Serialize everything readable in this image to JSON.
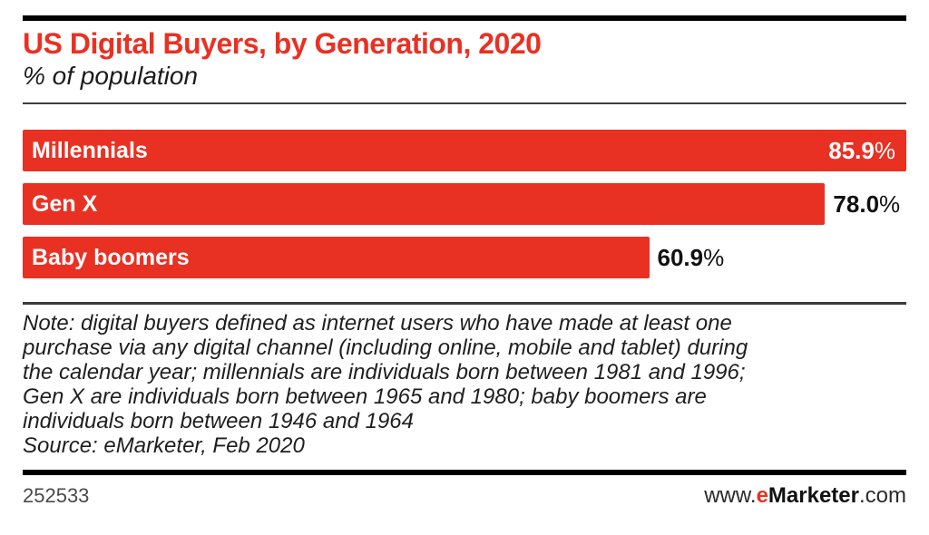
{
  "header": {
    "title": "US Digital Buyers, by Generation, 2020",
    "subtitle": "% of population"
  },
  "chart_data": {
    "type": "bar",
    "orientation": "horizontal",
    "title": "US Digital Buyers, by Generation, 2020",
    "unit_label": "% of population",
    "categories": [
      "Millennials",
      "Gen X",
      "Baby boomers"
    ],
    "values": [
      85.9,
      78.0,
      60.9
    ],
    "display_values": [
      "85.9",
      "78.0",
      "60.9"
    ],
    "value_suffix": "%",
    "xlim": [
      0,
      85.9
    ],
    "grid": false,
    "legend": false,
    "bar_color": "#e93123",
    "value_label_position": "max-value-inside-bar, others outside right of bar"
  },
  "note": {
    "lines": [
      "Note: digital buyers defined as internet users who have made at least one",
      "purchase via any digital channel (including online, mobile and tablet) during",
      "the calendar year; millennials are individuals born between 1981 and 1996;",
      "Gen X are individuals born between 1965 and 1980; baby boomers are",
      "individuals born between 1946 and 1964"
    ],
    "source": "Source: eMarketer, Feb 2020"
  },
  "footer": {
    "chart_id": "252533",
    "website": {
      "prefix": "www.",
      "brand_first_letter": "e",
      "brand_rest": "Marketer",
      "suffix": ".com"
    }
  },
  "colors": {
    "accent_red": "#e93123",
    "text_dark": "#1e1e1e",
    "rule_black": "#000000",
    "rule_gray": "#3d3d3d",
    "footer_id_gray": "#4a4a4a"
  }
}
